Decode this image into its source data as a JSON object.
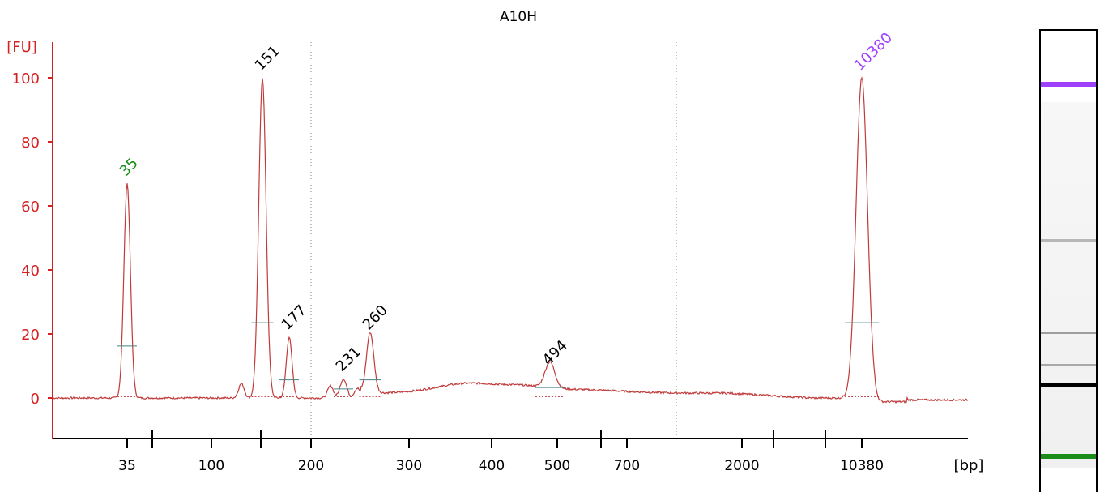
{
  "chart_data": {
    "type": "line",
    "title": "A10H",
    "ylabel": "[FU]",
    "xlabel": "[bp]",
    "ylim": [
      -13,
      110
    ],
    "yticks": [
      0,
      20,
      40,
      60,
      80,
      100
    ],
    "xtick_labels": [
      "35",
      "100",
      "200",
      "300",
      "400",
      "500",
      "700",
      "2000",
      "10380"
    ],
    "grid": "dotted vertical lines at 200 and between 700 and 2000",
    "colors": {
      "axis": "#d42020",
      "trace": "#c03a3a",
      "lower_marker": "#1a8c1a",
      "upper_marker": "#a040ff",
      "baseline": "#4a8080"
    },
    "peaks": [
      {
        "label": "35",
        "height": 67,
        "color": "#1a8c1a"
      },
      {
        "label": "151",
        "height": 100,
        "color": "#000000"
      },
      {
        "label": "177",
        "height": 19,
        "color": "#000000"
      },
      {
        "label": "231",
        "height": 6,
        "color": "#000000"
      },
      {
        "label": "260",
        "height": 19,
        "color": "#000000"
      },
      {
        "label": "494",
        "height": 8,
        "color": "#000000"
      },
      {
        "label": "10380",
        "height": 100,
        "color": "#a040ff"
      }
    ],
    "minor_peaks": [
      {
        "x_bp": 125,
        "height": 4.5
      },
      {
        "x_bp": 215,
        "height": 3.8
      },
      {
        "x_bp": 245,
        "height": 3.0
      }
    ],
    "gel_bands": [
      {
        "position_fraction": 0.11,
        "intensity": 1.0,
        "color": "#a040ff"
      },
      {
        "position_fraction": 0.45,
        "intensity": 0.25,
        "color": "#000000"
      },
      {
        "position_fraction": 0.65,
        "intensity": 0.35,
        "color": "#000000"
      },
      {
        "position_fraction": 0.72,
        "intensity": 0.3,
        "color": "#000000"
      },
      {
        "position_fraction": 0.76,
        "intensity": 1.0,
        "color": "#000000"
      },
      {
        "position_fraction": 0.915,
        "intensity": 1.0,
        "color": "#1a8c1a"
      }
    ]
  }
}
